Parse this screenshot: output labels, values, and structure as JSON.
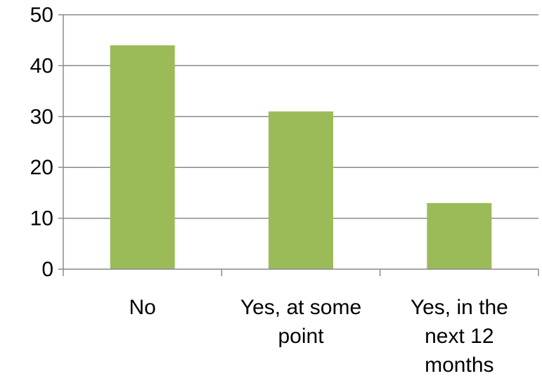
{
  "chart_data": {
    "type": "bar",
    "categories": [
      "No",
      "Yes, at some point",
      "Yes, in the next 12 months"
    ],
    "category_lines": [
      [
        "No"
      ],
      [
        "Yes, at some",
        "point"
      ],
      [
        "Yes, in the",
        "next 12",
        "months"
      ]
    ],
    "values": [
      44,
      31,
      13
    ],
    "ylim": [
      0,
      50
    ],
    "yticks": [
      0,
      10,
      20,
      30,
      40,
      50
    ],
    "grid": true,
    "bar_color": "#9bbb59",
    "title": "",
    "xlabel": "",
    "ylabel": ""
  }
}
